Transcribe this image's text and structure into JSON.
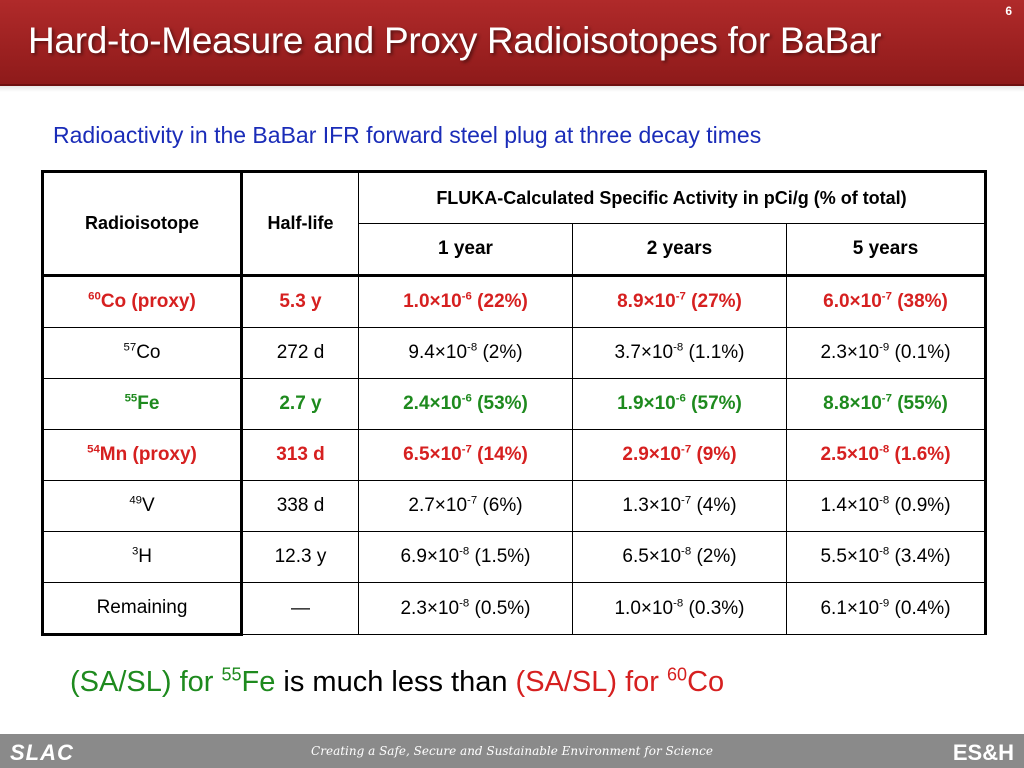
{
  "slide": {
    "title": "Hard-to-Measure and Proxy Radioisotopes for BaBar",
    "number": "6",
    "subtitle": "Radioactivity in the BaBar IFR forward steel plug at three decay times"
  },
  "table": {
    "headers": {
      "isotope": "Radioisotope",
      "halflife": "Half-life",
      "activity": "FLUKA-Calculated Specific Activity in pCi/g (% of total)",
      "times": [
        "1 year",
        "2 years",
        "5 years"
      ]
    },
    "rows": [
      {
        "highlight": "red",
        "iso_mass": "60",
        "iso_name": "Co (proxy)",
        "halflife": "5.3 y",
        "cells": [
          {
            "mant": "1.0×10",
            "exp": "-6",
            "pct": " (22%)"
          },
          {
            "mant": "8.9×10",
            "exp": "-7",
            "pct": " (27%)"
          },
          {
            "mant": "6.0×10",
            "exp": "-7",
            "pct": " (38%)"
          }
        ]
      },
      {
        "highlight": "none",
        "iso_mass": "57",
        "iso_name": "Co",
        "halflife": "272 d",
        "cells": [
          {
            "mant": "9.4×10",
            "exp": "-8",
            "pct": " (2%)"
          },
          {
            "mant": "3.7×10",
            "exp": "-8",
            "pct": " (1.1%)"
          },
          {
            "mant": "2.3×10",
            "exp": "-9",
            "pct": " (0.1%)"
          }
        ]
      },
      {
        "highlight": "green",
        "iso_mass": "55",
        "iso_name": "Fe",
        "halflife": "2.7 y",
        "cells": [
          {
            "mant": "2.4×10",
            "exp": "-6",
            "pct": " (53%)"
          },
          {
            "mant": "1.9×10",
            "exp": "-6",
            "pct": " (57%)"
          },
          {
            "mant": "8.8×10",
            "exp": "-7",
            "pct": " (55%)"
          }
        ]
      },
      {
        "highlight": "red",
        "iso_mass": "54",
        "iso_name": "Mn (proxy)",
        "halflife": "313 d",
        "cells": [
          {
            "mant": "6.5×10",
            "exp": "-7",
            "pct": " (14%)"
          },
          {
            "mant": "2.9×10",
            "exp": "-7",
            "pct": " (9%)"
          },
          {
            "mant": "2.5×10",
            "exp": "-8",
            "pct": " (1.6%)"
          }
        ]
      },
      {
        "highlight": "none",
        "iso_mass": "49",
        "iso_name": "V",
        "halflife": "338 d",
        "cells": [
          {
            "mant": "2.7×10",
            "exp": "-7",
            "pct": " (6%)"
          },
          {
            "mant": "1.3×10",
            "exp": "-7",
            "pct": " (4%)"
          },
          {
            "mant": "1.4×10",
            "exp": "-8",
            "pct": " (0.9%)"
          }
        ]
      },
      {
        "highlight": "none",
        "iso_mass": "3",
        "iso_name": "H",
        "halflife": "12.3 y",
        "cells": [
          {
            "mant": "6.9×10",
            "exp": "-8",
            "pct": " (1.5%)"
          },
          {
            "mant": "6.5×10",
            "exp": "-8",
            "pct": " (2%)"
          },
          {
            "mant": "5.5×10",
            "exp": "-8",
            "pct": " (3.4%)"
          }
        ]
      },
      {
        "highlight": "none",
        "iso_mass": "",
        "iso_name": "Remaining",
        "halflife": "—",
        "cells": [
          {
            "mant": "2.3×10",
            "exp": "-8",
            "pct": " (0.5%)"
          },
          {
            "mant": "1.0×10",
            "exp": "-8",
            "pct": " (0.3%)"
          },
          {
            "mant": "6.1×10",
            "exp": "-9",
            "pct": " (0.4%)"
          }
        ]
      }
    ]
  },
  "conclusion": {
    "part1": "(SA/SL) for ",
    "part1_mass": "55",
    "part1_name": "Fe",
    "middle": " is much less than ",
    "part2": "(SA/SL) for ",
    "part2_mass": "60",
    "part2_name": "Co"
  },
  "footer": {
    "left_logo": "SLAC",
    "tagline": "Creating a Safe, Secure and Sustainable Environment for Science",
    "right_logo": "ES&H"
  },
  "colors": {
    "header": "#9e1f1f",
    "subtitle": "#1a2cb8",
    "red": "#d62020",
    "green": "#1e8a1e",
    "footer": "#8a8a8a"
  }
}
